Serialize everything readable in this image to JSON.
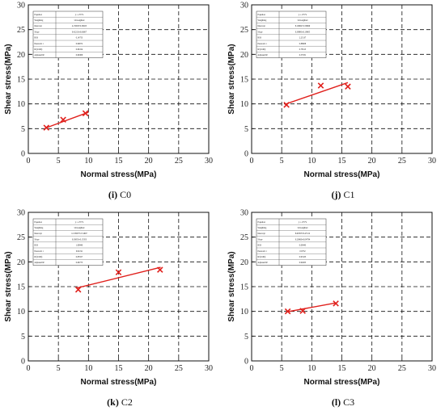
{
  "chart_data": [
    {
      "type": "scatter",
      "caption_id": "(i)",
      "caption_name": "C0",
      "xlabel": "Normal stress(MPa)",
      "ylabel": "Shear stress(MPa)",
      "xlim": [
        0,
        30
      ],
      "ylim": [
        0,
        30
      ],
      "xticks": [
        0,
        5,
        10,
        15,
        20,
        25,
        30
      ],
      "yticks": [
        0,
        5,
        10,
        15,
        20,
        25,
        30
      ],
      "grid": true,
      "points": [
        [
          3.0,
          5.2
        ],
        [
          5.8,
          6.8
        ],
        [
          9.5,
          8.1
        ]
      ],
      "fit_line": [
        [
          2.8,
          5.1
        ],
        [
          10.0,
          8.3
        ]
      ],
      "fit_table": {
        "rows": [
          [
            "Equation",
            "y = a+b*x"
          ],
          [
            "Weighting",
            "Unweighted"
          ],
          [
            "Intercept",
            "4.15950±0.39025"
          ],
          [
            "Slope",
            "0.42213±0.06007"
          ],
          [
            "RSS",
            "0.14753"
          ],
          [
            "Pearson's r",
            "0.99072"
          ],
          [
            "R²(COD)",
            "0.98154"
          ],
          [
            "Adjusted R²",
            "0.96308"
          ]
        ]
      }
    },
    {
      "type": "scatter",
      "caption_id": "(j)",
      "caption_name": "C1",
      "xlabel": "Normal stress(MPa)",
      "ylabel": "Shear stress(MPa)",
      "xlim": [
        0,
        30
      ],
      "ylim": [
        0,
        30
      ],
      "xticks": [
        0,
        5,
        10,
        15,
        20,
        25,
        30
      ],
      "yticks": [
        0,
        5,
        10,
        15,
        20,
        25,
        30
      ],
      "grid": true,
      "points": [
        [
          5.8,
          9.8
        ],
        [
          11.5,
          13.7
        ],
        [
          16.0,
          13.5
        ]
      ],
      "fit_line": [
        [
          5.5,
          9.9
        ],
        [
          16.0,
          14.3
        ]
      ],
      "fit_table": {
        "rows": [
          [
            "Equation",
            "y = a+b*x"
          ],
          [
            "Weighting",
            "Unweighted"
          ],
          [
            "Intercept",
            "8.19062±2.56699"
          ],
          [
            "Slope",
            "0.38893±0.19805"
          ],
          [
            "RSS",
            "2.25137"
          ],
          [
            "Pearson's r",
            "0.88608"
          ],
          [
            "R²(COD)",
            "0.78515"
          ],
          [
            "Adjusted R²",
            "0.57031"
          ]
        ]
      }
    },
    {
      "type": "scatter",
      "caption_id": "(k)",
      "caption_name": "C2",
      "xlabel": "Normal stress(MPa)",
      "ylabel": "Shear stress(MPa)",
      "xlim": [
        0,
        30
      ],
      "ylim": [
        0,
        30
      ],
      "xticks": [
        0,
        5,
        10,
        15,
        20,
        25,
        30
      ],
      "yticks": [
        0,
        5,
        10,
        15,
        20,
        25,
        30
      ],
      "grid": true,
      "points": [
        [
          8.3,
          14.4
        ],
        [
          15.0,
          17.9
        ],
        [
          21.9,
          18.4
        ]
      ],
      "fit_line": [
        [
          8.0,
          14.7
        ],
        [
          22.0,
          18.9
        ]
      ],
      "fit_table": {
        "rows": [
          [
            "Equation",
            "y = a+b*x"
          ],
          [
            "Weighting",
            "Unweighted"
          ],
          [
            "Intercept",
            "12.35007±2.51667"
          ],
          [
            "Slope",
            "0.30053±0.15353"
          ],
          [
            "RSS",
            "1.80940"
          ],
          [
            "Pearson's r",
            "0.91191"
          ],
          [
            "R²(COD)",
            "0.83557"
          ],
          [
            "Adjusted R²",
            "0.66773"
          ]
        ]
      }
    },
    {
      "type": "scatter",
      "caption_id": "(l)",
      "caption_name": "C3",
      "xlabel": "Normal stress(MPa)",
      "ylabel": "Shear stress(MPa)",
      "xlim": [
        0,
        30
      ],
      "ylim": [
        0,
        30
      ],
      "xticks": [
        0,
        5,
        10,
        15,
        20,
        25,
        30
      ],
      "yticks": [
        0,
        5,
        10,
        15,
        20,
        25,
        30
      ],
      "grid": true,
      "points": [
        [
          6.0,
          10.0
        ],
        [
          8.5,
          10.1
        ],
        [
          14.0,
          11.6
        ]
      ],
      "fit_line": [
        [
          5.8,
          9.9
        ],
        [
          14.0,
          11.7
        ]
      ],
      "fit_table": {
        "rows": [
          [
            "Equation",
            "y = a+b*x"
          ],
          [
            "Weighting",
            "Unweighted"
          ],
          [
            "Intercept",
            "8.60355±0.47122"
          ],
          [
            "Slope",
            "0.20060±0.04784"
          ],
          [
            "RSS",
            "0.09443"
          ],
          [
            "Pearson's r",
            "0.9732"
          ],
          [
            "R²(COD)",
            "0.95103"
          ],
          [
            "Adjusted R²",
            "0.90205"
          ]
        ]
      }
    }
  ],
  "colors": {
    "marker": "#e0201c",
    "line": "#e0201c",
    "axis": "#111111"
  }
}
